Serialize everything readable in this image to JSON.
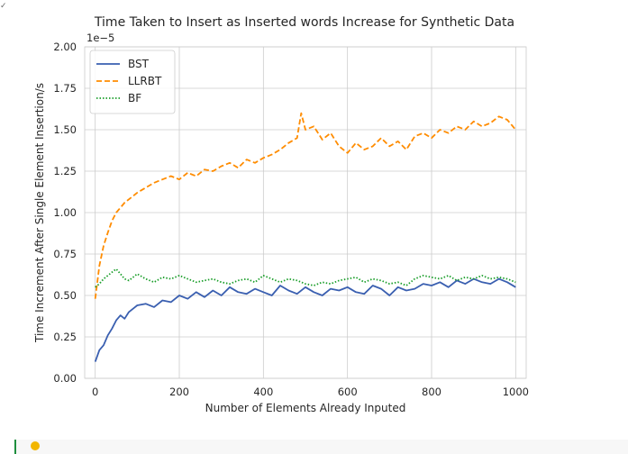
{
  "chart_data": {
    "type": "line",
    "title": "Time Taken to Insert as Inserted words Increase for Synthetic Data",
    "xlabel": "Number of Elements Already Inputed",
    "ylabel": "Time Increment After Single Element Insertion/s",
    "offset_label": "1e−5",
    "xlim": [
      -25,
      1025
    ],
    "ylim": [
      0.0,
      2.0
    ],
    "x_ticks": [
      0,
      200,
      400,
      600,
      800,
      1000
    ],
    "x_tick_labels": [
      "0",
      "200",
      "400",
      "600",
      "800",
      "1000"
    ],
    "y_ticks": [
      0.0,
      0.25,
      0.5,
      0.75,
      1.0,
      1.25,
      1.5,
      1.75,
      2.0
    ],
    "y_tick_labels": [
      "0.00",
      "0.25",
      "0.50",
      "0.75",
      "1.00",
      "1.25",
      "1.50",
      "1.75",
      "2.00"
    ],
    "grid": true,
    "legend_position": "top-left",
    "series": [
      {
        "name": "BST",
        "color": "#3a5fb0",
        "dash": "solid",
        "x": [
          0,
          10,
          20,
          30,
          40,
          50,
          60,
          70,
          80,
          90,
          100,
          120,
          140,
          160,
          180,
          200,
          220,
          240,
          260,
          280,
          300,
          320,
          340,
          360,
          380,
          400,
          420,
          440,
          460,
          480,
          500,
          520,
          540,
          560,
          580,
          600,
          620,
          640,
          660,
          680,
          700,
          720,
          740,
          760,
          780,
          800,
          820,
          840,
          860,
          880,
          900,
          920,
          940,
          960,
          980,
          1000
        ],
        "y": [
          0.1,
          0.17,
          0.2,
          0.26,
          0.3,
          0.35,
          0.38,
          0.36,
          0.4,
          0.42,
          0.44,
          0.45,
          0.43,
          0.47,
          0.46,
          0.5,
          0.48,
          0.52,
          0.49,
          0.53,
          0.5,
          0.55,
          0.52,
          0.51,
          0.54,
          0.52,
          0.5,
          0.56,
          0.53,
          0.51,
          0.55,
          0.52,
          0.5,
          0.54,
          0.53,
          0.55,
          0.52,
          0.51,
          0.56,
          0.54,
          0.5,
          0.55,
          0.53,
          0.54,
          0.57,
          0.56,
          0.58,
          0.55,
          0.59,
          0.57,
          0.6,
          0.58,
          0.57,
          0.6,
          0.58,
          0.55
        ]
      },
      {
        "name": "LLRBT",
        "color": "#ff8c00",
        "dash": "dashed",
        "x": [
          0,
          10,
          20,
          30,
          40,
          50,
          60,
          70,
          80,
          90,
          100,
          120,
          140,
          160,
          180,
          200,
          220,
          240,
          260,
          280,
          300,
          320,
          340,
          360,
          380,
          400,
          420,
          440,
          460,
          480,
          490,
          500,
          520,
          540,
          560,
          580,
          600,
          620,
          640,
          660,
          680,
          700,
          720,
          740,
          760,
          780,
          800,
          820,
          840,
          860,
          880,
          900,
          920,
          940,
          960,
          980,
          1000
        ],
        "y": [
          0.48,
          0.68,
          0.8,
          0.88,
          0.95,
          1.0,
          1.03,
          1.06,
          1.08,
          1.1,
          1.12,
          1.15,
          1.18,
          1.2,
          1.22,
          1.2,
          1.24,
          1.22,
          1.26,
          1.25,
          1.28,
          1.3,
          1.27,
          1.32,
          1.3,
          1.33,
          1.35,
          1.38,
          1.42,
          1.45,
          1.6,
          1.5,
          1.52,
          1.44,
          1.48,
          1.4,
          1.36,
          1.42,
          1.38,
          1.4,
          1.45,
          1.4,
          1.43,
          1.38,
          1.46,
          1.48,
          1.45,
          1.5,
          1.48,
          1.52,
          1.5,
          1.55,
          1.52,
          1.54,
          1.58,
          1.56,
          1.5
        ]
      },
      {
        "name": "BF",
        "color": "#1a9e2a",
        "dash": "dotted",
        "x": [
          0,
          10,
          20,
          30,
          40,
          50,
          60,
          70,
          80,
          90,
          100,
          120,
          140,
          160,
          180,
          200,
          220,
          240,
          260,
          280,
          300,
          320,
          340,
          360,
          380,
          400,
          420,
          440,
          460,
          480,
          500,
          520,
          540,
          560,
          580,
          600,
          620,
          640,
          660,
          680,
          700,
          720,
          740,
          760,
          780,
          800,
          820,
          840,
          860,
          880,
          900,
          920,
          940,
          960,
          980,
          1000
        ],
        "y": [
          0.55,
          0.57,
          0.6,
          0.62,
          0.64,
          0.66,
          0.63,
          0.6,
          0.59,
          0.61,
          0.63,
          0.6,
          0.58,
          0.61,
          0.6,
          0.62,
          0.6,
          0.58,
          0.59,
          0.6,
          0.58,
          0.57,
          0.59,
          0.6,
          0.58,
          0.62,
          0.6,
          0.58,
          0.6,
          0.59,
          0.57,
          0.56,
          0.58,
          0.57,
          0.59,
          0.6,
          0.61,
          0.58,
          0.6,
          0.59,
          0.57,
          0.58,
          0.56,
          0.6,
          0.62,
          0.61,
          0.6,
          0.62,
          0.59,
          0.61,
          0.6,
          0.62,
          0.6,
          0.61,
          0.6,
          0.58
        ]
      }
    ]
  },
  "colors": {
    "grid": "#cccccc",
    "axes_text": "#262626",
    "cell_accent": "#1e8e3e",
    "bulb": "#f2b600"
  },
  "icons": {
    "cell_status": "checkmark-icon",
    "hint": "lightbulb-icon"
  }
}
